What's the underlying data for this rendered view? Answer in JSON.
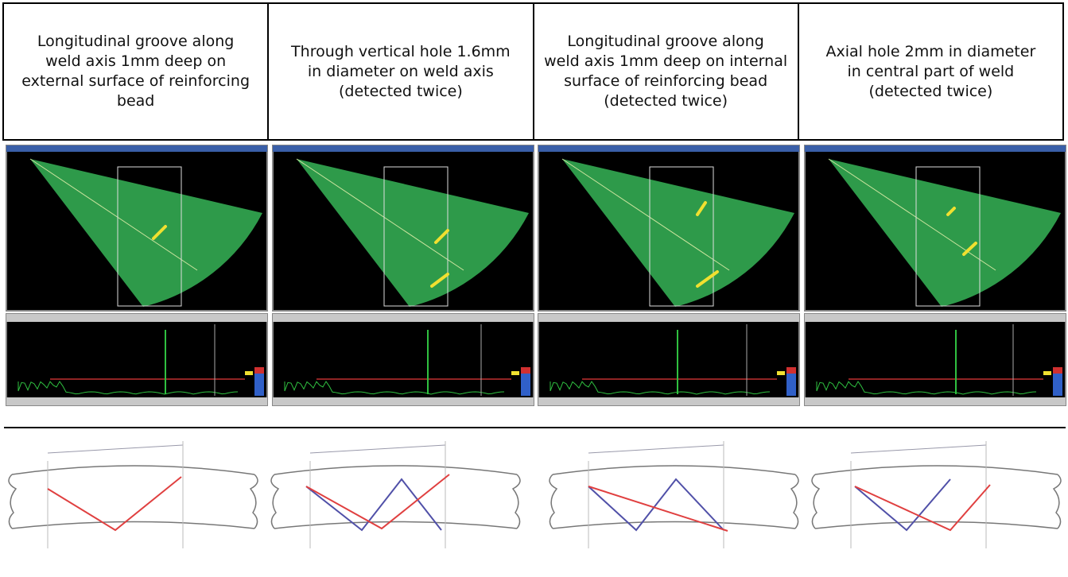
{
  "headers": [
    {
      "lines": [
        "Longitudinal groove along",
        "weld axis 1mm deep on",
        "external surface of reinforcing",
        "bead"
      ]
    },
    {
      "lines": [
        "Through vertical hole  1.6mm",
        "in diameter on weld axis",
        "(detected twice)"
      ]
    },
    {
      "lines": [
        "Longitudinal groove along",
        "weld axis 1mm deep on internal",
        "surface of reinforcing bead",
        "(detected twice)"
      ]
    },
    {
      "lines": [
        "Axial hole 2mm in diameter",
        "in central part of weld",
        "(detected twice)"
      ]
    }
  ]
}
